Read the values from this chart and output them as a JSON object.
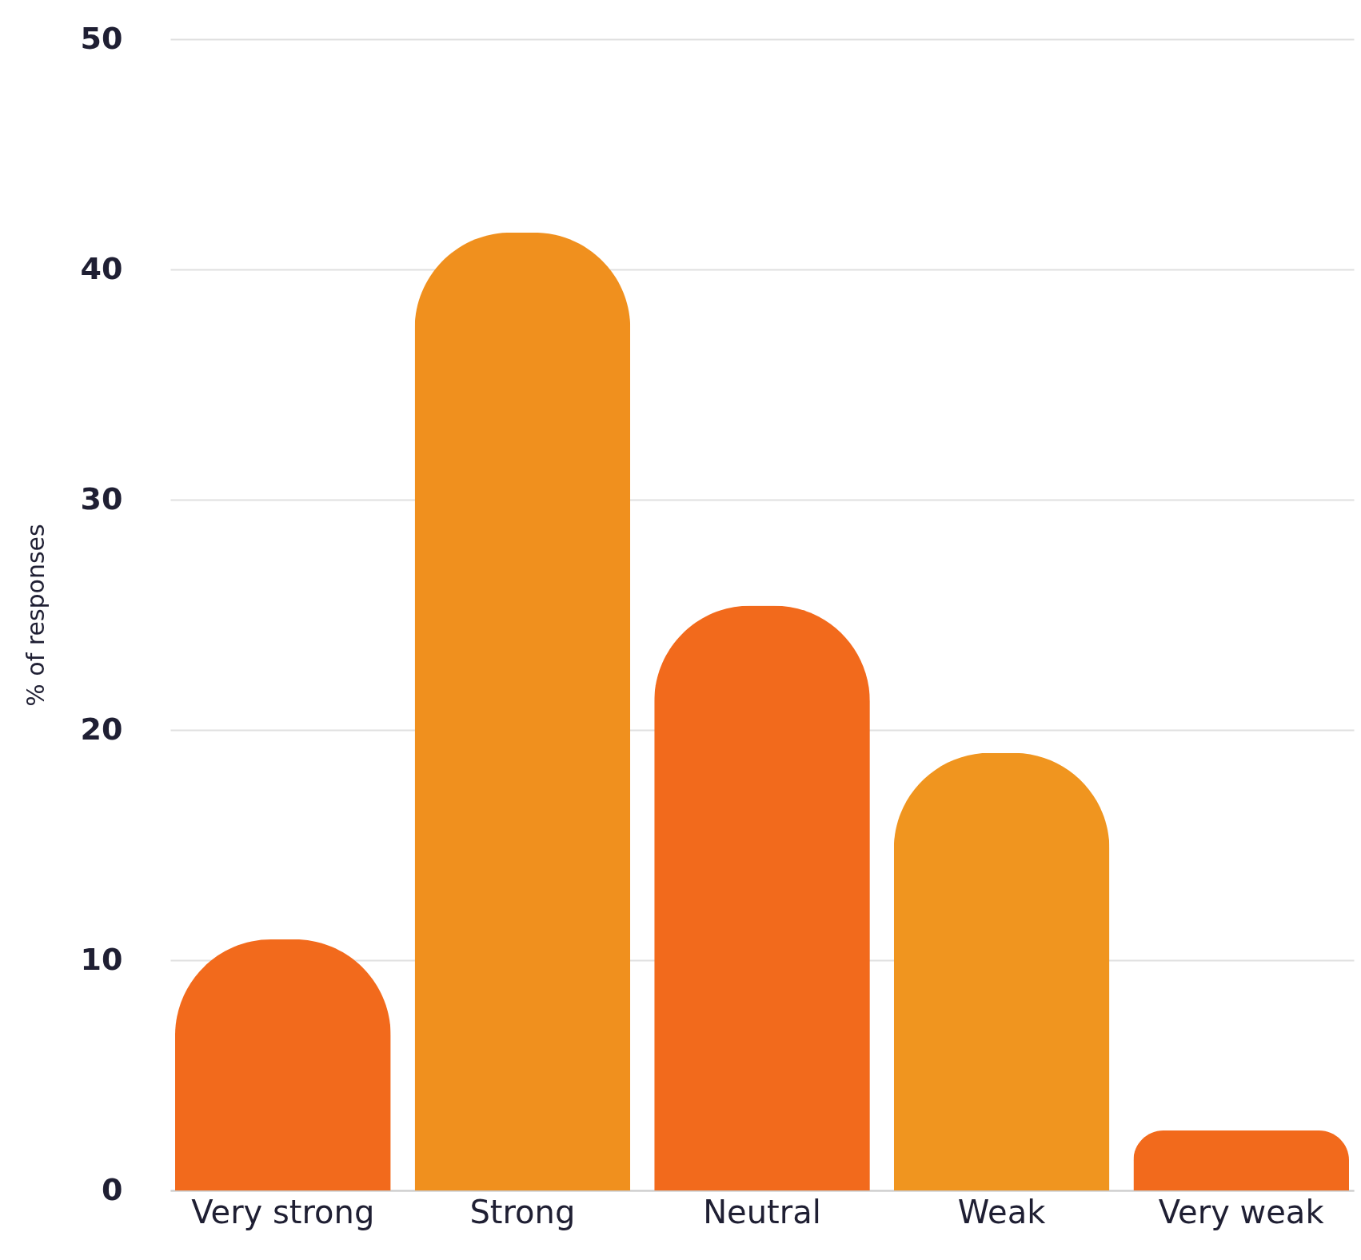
{
  "chart_data": {
    "type": "bar",
    "ylabel": "% of responses",
    "categories": [
      "Very strong",
      "Strong",
      "Neutral",
      "Weak",
      "Very weak"
    ],
    "values": [
      10.9,
      41.6,
      25.4,
      19.0,
      2.6
    ],
    "colors": [
      "#f26a1c",
      "#f0901e",
      "#f26a1c",
      "#f0951f",
      "#f26a1c"
    ],
    "ylim": [
      0,
      50
    ],
    "yticks": [
      0,
      10,
      20,
      30,
      40,
      50
    ],
    "grid": "y"
  }
}
